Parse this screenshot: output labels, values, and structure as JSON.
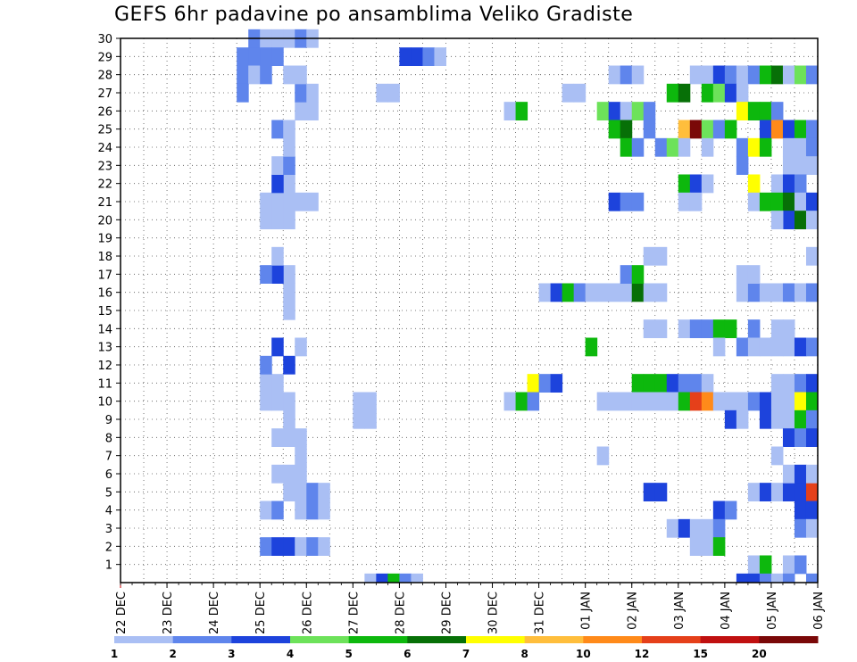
{
  "chart_data": {
    "type": "heatmap",
    "title": "GEFS 6hr padavine po ansamblima Veliko Gradiste",
    "xlabel": "",
    "ylabel": "",
    "x_tick_labels": [
      "22 DEC",
      "23 DEC",
      "24 DEC",
      "25 DEC",
      "26 DEC",
      "27 DEC",
      "28 DEC",
      "29 DEC",
      "30 DEC",
      "31 DEC",
      "01 JAN",
      "02 JAN",
      "03 JAN",
      "04 JAN",
      "05 JAN",
      "06 JAN"
    ],
    "xlim": [
      0,
      15
    ],
    "x_unit": "days from 22 DEC (6-hour steps)",
    "y_tick_labels": [
      "1",
      "2",
      "3",
      "4",
      "5",
      "6",
      "7",
      "8",
      "9",
      "10",
      "11",
      "12",
      "13",
      "14",
      "15",
      "16",
      "17",
      "18",
      "19",
      "20",
      "21",
      "22",
      "23",
      "24",
      "25",
      "26",
      "27",
      "28",
      "29",
      "30"
    ],
    "ylim": [
      0,
      30
    ],
    "colorbar": {
      "labels": [
        "1",
        "2",
        "3",
        "4",
        "5",
        "6",
        "7",
        "8",
        "10",
        "12",
        "15",
        "20"
      ],
      "colors": [
        "#aabff4",
        "#5f85ec",
        "#1d43dc",
        "#6de25a",
        "#0db80d",
        "#077007",
        "#ffff00",
        "#ffbe3c",
        "#ff8a1a",
        "#e5401a",
        "#c01010",
        "#7a0808"
      ]
    },
    "cells": [
      [
        1,
        30,
        1
      ],
      [
        1,
        29,
        2
      ],
      [
        2,
        28,
        2
      ],
      [
        3,
        27,
        1
      ],
      [
        4,
        26,
        2
      ],
      [
        4,
        25,
        2
      ],
      [
        5,
        24,
        1
      ],
      [
        2,
        30,
        3
      ],
      [
        3,
        30,
        2
      ],
      [
        4,
        30,
        1
      ],
      [
        5,
        30,
        1
      ],
      [
        2,
        28,
        3
      ],
      [
        2,
        26,
        1
      ],
      [
        3,
        26,
        1
      ],
      [
        5,
        29,
        5
      ],
      [
        2,
        27,
        8
      ],
      [
        3,
        27,
        8
      ],
      [
        1,
        24,
        0
      ],
      [
        1,
        25,
        1
      ],
      [
        2,
        25,
        3
      ],
      [
        4,
        24,
        1
      ],
      [
        3,
        24,
        3
      ],
      [
        2,
        23,
        2
      ],
      [
        3,
        22,
        2
      ],
      [
        4,
        22,
        1
      ],
      [
        5,
        20,
        1
      ],
      [
        6,
        19,
        1
      ],
      [
        7,
        18,
        1
      ],
      [
        5,
        17,
        3
      ],
      [
        4,
        17,
        2
      ],
      [
        3,
        16,
        1
      ],
      [
        9,
        16,
        6
      ],
      [
        2,
        16,
        2
      ],
      [
        10,
        15,
        1
      ],
      [
        10,
        14,
        1
      ],
      [
        8,
        15,
        1
      ],
      [
        2,
        14,
        1
      ],
      [
        3,
        14,
        2
      ],
      [
        5,
        13,
        2
      ],
      [
        6,
        12,
        2
      ],
      [
        4,
        12,
        1
      ],
      [
        1,
        11,
        1
      ],
      [
        3,
        11,
        1
      ],
      [
        2,
        10,
        1
      ],
      [
        1,
        10,
        1
      ],
      [
        3,
        9,
        1
      ],
      [
        2,
        9,
        1
      ],
      [
        3,
        8,
        1
      ],
      [
        4,
        8,
        1
      ],
      [
        2,
        7,
        1
      ],
      [
        2,
        5,
        1
      ],
      [
        1,
        5,
        1
      ],
      [
        3,
        5,
        2
      ],
      [
        2,
        4,
        1
      ],
      [
        1,
        4,
        1
      ],
      [
        1,
        3,
        1
      ],
      [
        4,
        3,
        2
      ],
      [
        1,
        2,
        1
      ],
      [
        1,
        1,
        2
      ],
      [
        2,
        1,
        1
      ],
      [
        3,
        1,
        1
      ],
      [
        2,
        0,
        1
      ],
      [
        3,
        0,
        1
      ]
    ]
  }
}
